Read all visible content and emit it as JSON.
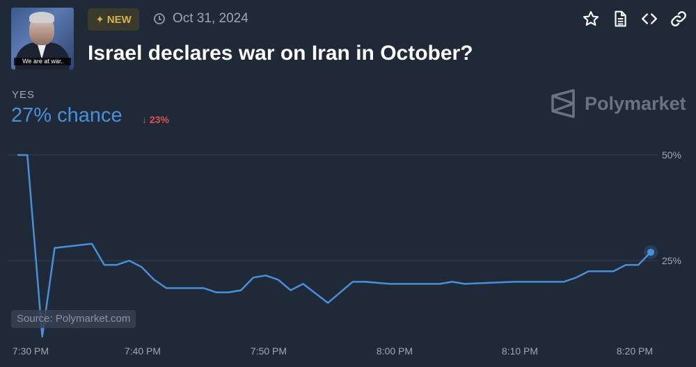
{
  "header": {
    "thumbnail_caption": "We are at war.",
    "badge": "NEW",
    "date": "Oct 31, 2024",
    "title": "Israel declares war on Iran in October?",
    "icons": [
      "star-icon",
      "document-icon",
      "code-icon",
      "link-icon"
    ]
  },
  "outcome": {
    "label": "YES",
    "chance": "27% chance",
    "change": "23%"
  },
  "brand": {
    "name": "Polymarket"
  },
  "source": "Source: Polymarket.com",
  "colors": {
    "background": "#1f2937",
    "line": "#4a90d9",
    "negative": "#e05252",
    "badge_text": "#d8b24a",
    "muted": "#a0a8b5",
    "grid": "#374151"
  },
  "chart_data": {
    "type": "line",
    "title": "",
    "xlabel": "",
    "ylabel": "",
    "x_ticks": [
      "7:30 PM",
      "7:40 PM",
      "7:50 PM",
      "8:00 PM",
      "8:10 PM",
      "8:20 PM"
    ],
    "y_ticks": [
      "50%",
      "25%"
    ],
    "ylim": [
      0,
      55
    ],
    "xlim_minutes_after_730pm": [
      0,
      51
    ],
    "grid": true,
    "series": [
      {
        "name": "Yes",
        "x": [
          0,
          0.8,
          2,
          3,
          6,
          7,
          8,
          9,
          10,
          11,
          12,
          13,
          15,
          16,
          17,
          18,
          19,
          20,
          21,
          22,
          23,
          25,
          26,
          27,
          28,
          30,
          32,
          33,
          34,
          35,
          36,
          40,
          42,
          43,
          44,
          45,
          46,
          48,
          49,
          50,
          51
        ],
        "y": [
          50,
          50,
          7,
          28,
          29,
          24,
          24,
          25,
          23.5,
          20.5,
          18.5,
          18.5,
          18.5,
          17.5,
          17.5,
          18,
          21,
          21.5,
          20.5,
          18,
          19.5,
          15,
          17.5,
          20,
          20,
          19.5,
          19.5,
          19.5,
          19.5,
          20,
          19.5,
          20,
          20,
          20,
          20,
          21,
          22.5,
          22.5,
          24,
          24,
          27
        ]
      }
    ]
  }
}
